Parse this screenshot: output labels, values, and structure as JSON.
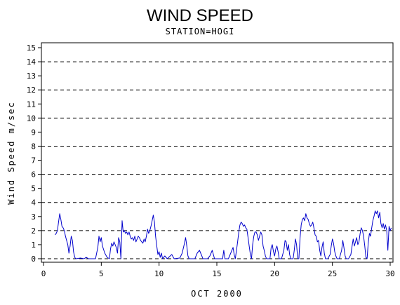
{
  "chart_data": {
    "type": "line",
    "title": "WIND SPEED",
    "subtitle": "STATION=HOGI",
    "xlabel": "OCT 2000",
    "ylabel": "Wind Speed m/sec",
    "xlim": [
      0,
      30.4
    ],
    "ylim": [
      -0.3,
      15.4
    ],
    "x_ticks": [
      0,
      5,
      10,
      15,
      20,
      25,
      30
    ],
    "y_ticks": [
      0,
      1,
      2,
      3,
      4,
      5,
      6,
      7,
      8,
      9,
      10,
      11,
      12,
      13,
      14,
      15
    ],
    "reference_lines": [
      0,
      2,
      4,
      6,
      8,
      10,
      12,
      14
    ],
    "grid": "dashed horizontal lines at even values",
    "line_color": "#0000cc",
    "series": [
      {
        "values": [
          [
            1.0,
            1.7
          ],
          [
            1.1,
            1.8
          ],
          [
            1.2,
            2.0
          ],
          [
            1.3,
            2.6
          ],
          [
            1.4,
            3.2
          ],
          [
            1.5,
            2.8
          ],
          [
            1.6,
            2.3
          ],
          [
            1.7,
            2.2
          ],
          [
            1.8,
            2.0
          ],
          [
            1.9,
            1.6
          ],
          [
            2.0,
            1.3
          ],
          [
            2.1,
            1.0
          ],
          [
            2.2,
            0.4
          ],
          [
            2.3,
            0.9
          ],
          [
            2.4,
            1.6
          ],
          [
            2.5,
            1.3
          ],
          [
            2.6,
            0.5
          ],
          [
            2.7,
            0.1
          ],
          [
            2.8,
            0.0
          ],
          [
            3.2,
            0.05
          ],
          [
            3.5,
            0.0
          ],
          [
            3.7,
            0.1
          ],
          [
            3.9,
            0.0
          ],
          [
            4.5,
            0.0
          ],
          [
            4.7,
            0.8
          ],
          [
            4.8,
            1.6
          ],
          [
            4.9,
            1.2
          ],
          [
            5.0,
            1.5
          ],
          [
            5.1,
            0.9
          ],
          [
            5.3,
            0.4
          ],
          [
            5.5,
            0.1
          ],
          [
            5.7,
            0.0
          ],
          [
            5.8,
            0.7
          ],
          [
            5.9,
            1.1
          ],
          [
            6.0,
            0.9
          ],
          [
            6.1,
            1.2
          ],
          [
            6.2,
            1.0
          ],
          [
            6.3,
            0.8
          ],
          [
            6.4,
            0.4
          ],
          [
            6.5,
            1.5
          ],
          [
            6.6,
            1.2
          ],
          [
            6.7,
            0.0
          ],
          [
            6.8,
            2.7
          ],
          [
            6.9,
            1.9
          ],
          [
            7.0,
            2.0
          ],
          [
            7.1,
            1.8
          ],
          [
            7.2,
            1.9
          ],
          [
            7.3,
            1.7
          ],
          [
            7.4,
            1.9
          ],
          [
            7.5,
            1.6
          ],
          [
            7.6,
            1.4
          ],
          [
            7.7,
            1.5
          ],
          [
            7.8,
            1.3
          ],
          [
            7.9,
            1.6
          ],
          [
            8.0,
            1.2
          ],
          [
            8.1,
            1.4
          ],
          [
            8.2,
            1.6
          ],
          [
            8.3,
            1.5
          ],
          [
            8.4,
            1.3
          ],
          [
            8.5,
            1.2
          ],
          [
            8.6,
            1.1
          ],
          [
            8.7,
            1.4
          ],
          [
            8.8,
            1.2
          ],
          [
            8.9,
            1.6
          ],
          [
            9.0,
            2.1
          ],
          [
            9.1,
            1.8
          ],
          [
            9.2,
            2.0
          ],
          [
            9.3,
            2.3
          ],
          [
            9.4,
            2.7
          ],
          [
            9.5,
            3.1
          ],
          [
            9.6,
            2.6
          ],
          [
            9.7,
            1.6
          ],
          [
            9.8,
            0.9
          ],
          [
            9.9,
            0.3
          ],
          [
            10.0,
            0.5
          ],
          [
            10.1,
            0.1
          ],
          [
            10.2,
            0.4
          ],
          [
            10.3,
            0.0
          ],
          [
            10.5,
            0.2
          ],
          [
            10.7,
            0.0
          ],
          [
            11.1,
            0.3
          ],
          [
            11.3,
            0.0
          ],
          [
            11.8,
            0.05
          ],
          [
            12.0,
            0.4
          ],
          [
            12.2,
            1.1
          ],
          [
            12.3,
            1.5
          ],
          [
            12.4,
            0.9
          ],
          [
            12.5,
            0.2
          ],
          [
            12.6,
            0.0
          ],
          [
            13.1,
            0.0
          ],
          [
            13.3,
            0.4
          ],
          [
            13.5,
            0.6
          ],
          [
            13.7,
            0.2
          ],
          [
            13.8,
            0.0
          ],
          [
            14.2,
            0.0
          ],
          [
            14.4,
            0.2
          ],
          [
            14.6,
            0.6
          ],
          [
            14.8,
            0.0
          ],
          [
            15.3,
            0.0
          ],
          [
            15.5,
            0.0
          ],
          [
            15.6,
            0.6
          ],
          [
            15.7,
            0.0
          ],
          [
            16.0,
            0.0
          ],
          [
            16.2,
            0.4
          ],
          [
            16.4,
            0.8
          ],
          [
            16.5,
            0.3
          ],
          [
            16.6,
            0.0
          ],
          [
            16.7,
            0.6
          ],
          [
            16.8,
            1.2
          ],
          [
            16.9,
            1.9
          ],
          [
            17.0,
            2.4
          ],
          [
            17.1,
            2.6
          ],
          [
            17.2,
            2.5
          ],
          [
            17.3,
            2.3
          ],
          [
            17.4,
            2.4
          ],
          [
            17.5,
            2.2
          ],
          [
            17.6,
            2.1
          ],
          [
            17.7,
            1.5
          ],
          [
            17.8,
            0.9
          ],
          [
            17.9,
            0.3
          ],
          [
            18.0,
            0.0
          ],
          [
            18.1,
            1.0
          ],
          [
            18.2,
            1.6
          ],
          [
            18.3,
            1.9
          ],
          [
            18.4,
            1.9
          ],
          [
            18.5,
            1.7
          ],
          [
            18.6,
            1.3
          ],
          [
            18.7,
            1.6
          ],
          [
            18.8,
            1.9
          ],
          [
            18.9,
            1.7
          ],
          [
            19.0,
            0.9
          ],
          [
            19.1,
            0.6
          ],
          [
            19.2,
            0.2
          ],
          [
            19.3,
            0.0
          ],
          [
            19.6,
            0.0
          ],
          [
            19.7,
            0.8
          ],
          [
            19.8,
            1.0
          ],
          [
            19.9,
            0.5
          ],
          [
            20.0,
            0.2
          ],
          [
            20.1,
            0.7
          ],
          [
            20.2,
            0.9
          ],
          [
            20.3,
            0.5
          ],
          [
            20.4,
            0.0
          ],
          [
            20.6,
            0.0
          ],
          [
            20.8,
            0.6
          ],
          [
            20.9,
            1.3
          ],
          [
            21.0,
            1.2
          ],
          [
            21.1,
            0.6
          ],
          [
            21.2,
            1.0
          ],
          [
            21.3,
            0.3
          ],
          [
            21.4,
            0.0
          ],
          [
            21.6,
            0.0
          ],
          [
            21.7,
            0.6
          ],
          [
            21.8,
            1.4
          ],
          [
            21.9,
            1.0
          ],
          [
            22.0,
            0.0
          ],
          [
            22.1,
            0.0
          ],
          [
            22.2,
            1.5
          ],
          [
            22.3,
            2.4
          ],
          [
            22.4,
            2.8
          ],
          [
            22.5,
            2.9
          ],
          [
            22.6,
            2.7
          ],
          [
            22.7,
            3.2
          ],
          [
            22.8,
            2.9
          ],
          [
            22.9,
            2.8
          ],
          [
            23.0,
            2.5
          ],
          [
            23.1,
            2.3
          ],
          [
            23.2,
            2.4
          ],
          [
            23.3,
            2.6
          ],
          [
            23.4,
            2.2
          ],
          [
            23.5,
            1.7
          ],
          [
            23.6,
            1.6
          ],
          [
            23.7,
            1.2
          ],
          [
            23.8,
            1.3
          ],
          [
            23.9,
            0.6
          ],
          [
            24.0,
            0.2
          ],
          [
            24.1,
            0.8
          ],
          [
            24.2,
            1.2
          ],
          [
            24.3,
            0.4
          ],
          [
            24.4,
            0.0
          ],
          [
            24.6,
            0.0
          ],
          [
            24.8,
            0.3
          ],
          [
            24.9,
            0.9
          ],
          [
            25.0,
            1.4
          ],
          [
            25.1,
            1.1
          ],
          [
            25.2,
            0.5
          ],
          [
            25.3,
            0.2
          ],
          [
            25.4,
            0.0
          ],
          [
            25.6,
            0.0
          ],
          [
            25.8,
            0.6
          ],
          [
            25.9,
            1.3
          ],
          [
            26.0,
            0.8
          ],
          [
            26.1,
            0.2
          ],
          [
            26.2,
            0.0
          ],
          [
            26.4,
            0.0
          ],
          [
            26.6,
            0.3
          ],
          [
            26.7,
            0.9
          ],
          [
            26.8,
            1.4
          ],
          [
            26.9,
            0.9
          ],
          [
            27.0,
            1.2
          ],
          [
            27.1,
            1.5
          ],
          [
            27.2,
            1.0
          ],
          [
            27.3,
            1.2
          ],
          [
            27.4,
            1.8
          ],
          [
            27.5,
            2.2
          ],
          [
            27.6,
            2.0
          ],
          [
            27.7,
            1.6
          ],
          [
            27.8,
            0.9
          ],
          [
            27.9,
            0.1
          ],
          [
            28.0,
            0.0
          ],
          [
            28.1,
            1.1
          ],
          [
            28.2,
            1.8
          ],
          [
            28.3,
            1.6
          ],
          [
            28.4,
            2.2
          ],
          [
            28.5,
            2.7
          ],
          [
            28.6,
            3.0
          ],
          [
            28.7,
            3.4
          ],
          [
            28.8,
            3.2
          ],
          [
            28.9,
            3.4
          ],
          [
            29.0,
            2.9
          ],
          [
            29.1,
            3.3
          ],
          [
            29.2,
            2.5
          ],
          [
            29.3,
            2.2
          ],
          [
            29.4,
            2.5
          ],
          [
            29.5,
            2.1
          ],
          [
            29.6,
            2.4
          ],
          [
            29.7,
            2.0
          ],
          [
            29.8,
            0.6
          ],
          [
            29.9,
            2.3
          ],
          [
            30.0,
            2.0
          ],
          [
            30.1,
            2.2
          ]
        ]
      }
    ]
  }
}
